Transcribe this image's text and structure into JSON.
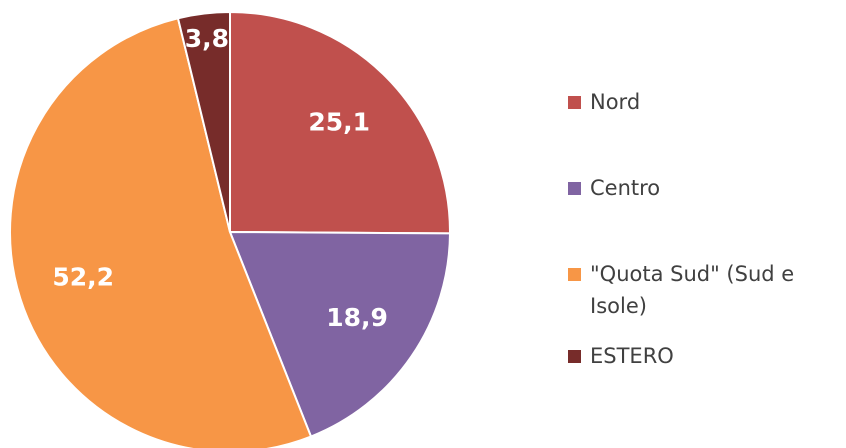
{
  "chart_data": {
    "type": "pie",
    "categories": [
      "Nord",
      "Centro",
      "\"Quota Sud\" (Sud e Isole)",
      "ESTERO"
    ],
    "values": [
      25.1,
      18.9,
      52.2,
      3.8
    ],
    "value_labels": [
      "25,1",
      "18,9",
      "52,2",
      "3,8"
    ],
    "colors": [
      "#c0504d",
      "#8064a2",
      "#f79646",
      "#772c2a"
    ],
    "legend": "right"
  }
}
